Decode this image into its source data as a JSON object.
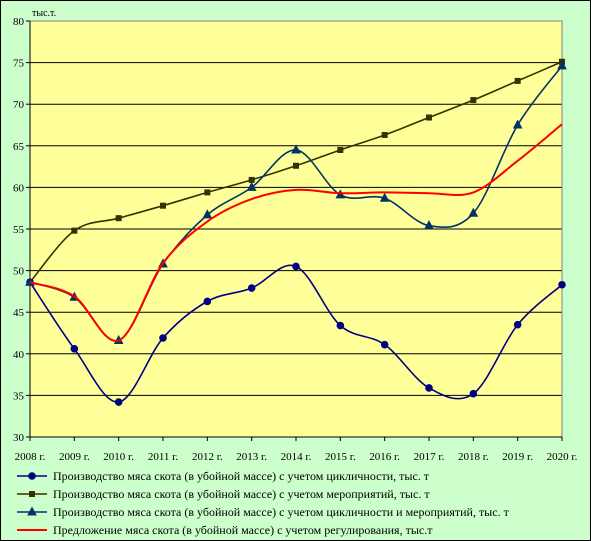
{
  "chart_data": {
    "type": "line",
    "ylabel": "тыс.т.",
    "ylim": [
      30,
      80
    ],
    "yticks": [
      30,
      35,
      40,
      45,
      50,
      55,
      60,
      65,
      70,
      75,
      80
    ],
    "categories": [
      "2008 г.",
      "2009 г.",
      "2010 г.",
      "2011 г.",
      "2012 г.",
      "2013 г.",
      "2014 г.",
      "2015 г.",
      "2016 г.",
      "2017 г.",
      "2018 г.",
      "2019 г.",
      "2020 г."
    ],
    "grid": "horizontal",
    "legend_position": "bottom",
    "plot_background": "#ffff99",
    "chart_background": "#ccffcc",
    "series": [
      {
        "name": "Производство мяса скота (в убойной массе) с учетом цикличности, тыс. т",
        "color": "#000080",
        "marker": "circle",
        "values": [
          48.6,
          40.6,
          34.2,
          41.9,
          46.3,
          47.9,
          50.5,
          43.4,
          41.1,
          35.9,
          35.2,
          43.5,
          48.3
        ]
      },
      {
        "name": "Производство мяса скота (в убойной массе) с учетом мероприятий, тыс. т",
        "color": "#333300",
        "marker": "square",
        "values": [
          48.6,
          54.8,
          56.3,
          57.8,
          59.4,
          60.9,
          62.6,
          64.5,
          66.3,
          68.4,
          70.5,
          72.8,
          75.1
        ]
      },
      {
        "name": "Производство мяса скота (в убойной массе) с учетом цикличности и мероприятий, тыс. т",
        "color": "#003366",
        "marker": "triangle",
        "values": [
          48.6,
          46.8,
          41.6,
          50.8,
          56.7,
          60.0,
          64.5,
          59.1,
          58.7,
          55.4,
          56.9,
          67.5,
          74.6
        ]
      },
      {
        "name": "Предложение мяса скота (в убойной массе) с учетом регулирования, тыс.т",
        "color": "#ff0000",
        "marker": "none",
        "values": [
          48.6,
          46.9,
          41.6,
          50.9,
          55.9,
          58.6,
          59.7,
          59.3,
          59.4,
          59.3,
          59.4,
          63.2,
          67.6
        ]
      }
    ]
  }
}
